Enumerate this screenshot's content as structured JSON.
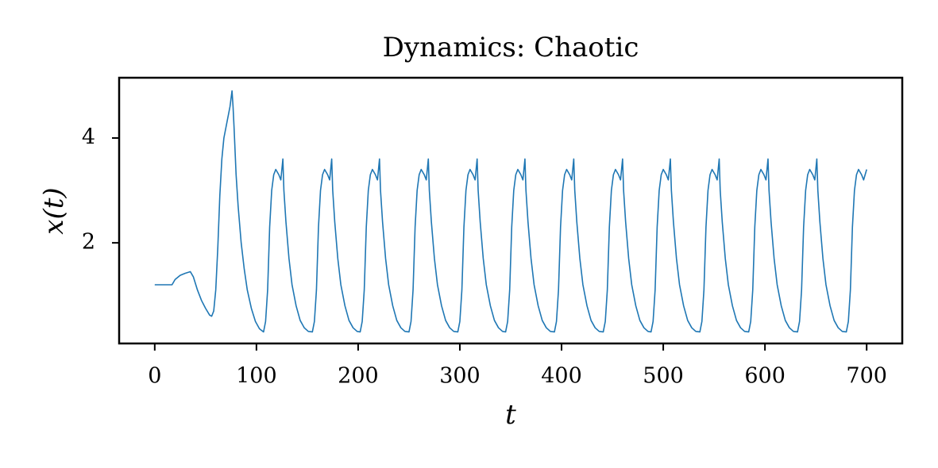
{
  "chart_data": {
    "type": "line",
    "title": "Dynamics: Chaotic",
    "x_label": "t",
    "y_label": "x(t)",
    "xlim": [
      -35,
      735
    ],
    "ylim": [
      0.08,
      5.15
    ],
    "xticks": [
      0,
      100,
      200,
      300,
      400,
      500,
      600,
      700
    ],
    "yticks": [
      2,
      4
    ],
    "grid": false,
    "x": [
      0,
      17,
      20,
      25,
      30,
      35,
      38,
      42,
      46,
      50,
      54,
      56,
      58,
      60,
      62,
      64,
      66,
      68,
      71,
      74,
      76,
      77,
      78,
      80,
      82,
      85,
      88,
      91,
      95,
      99,
      103,
      107,
      109,
      111,
      113,
      115,
      117,
      119,
      122,
      124,
      126,
      127,
      129,
      132,
      135,
      139,
      143,
      147,
      151,
      155,
      157,
      159,
      161,
      163,
      165,
      167,
      170,
      172,
      174,
      175,
      177,
      180,
      183,
      187,
      191,
      195,
      199,
      202,
      204,
      206,
      208,
      210,
      212,
      214,
      217,
      219,
      221,
      222,
      224,
      227,
      230,
      234,
      238,
      242,
      246,
      250,
      252,
      254,
      256,
      258,
      260,
      262,
      265,
      267,
      269,
      270,
      272,
      275,
      278,
      282,
      286,
      290,
      294,
      298,
      300,
      302,
      304,
      306,
      308,
      310,
      313,
      315,
      317,
      318,
      320,
      323,
      326,
      330,
      334,
      338,
      342,
      345,
      347,
      349,
      351,
      353,
      355,
      357,
      360,
      362,
      364,
      365,
      367,
      370,
      373,
      377,
      381,
      385,
      389,
      393,
      395,
      397,
      399,
      401,
      403,
      405,
      408,
      410,
      412,
      413,
      415,
      418,
      421,
      425,
      429,
      433,
      437,
      441,
      443,
      445,
      447,
      449,
      451,
      453,
      456,
      458,
      460,
      461,
      463,
      466,
      469,
      473,
      477,
      481,
      485,
      488,
      490,
      492,
      494,
      496,
      498,
      500,
      503,
      505,
      507,
      508,
      510,
      513,
      516,
      520,
      524,
      528,
      532,
      536,
      538,
      540,
      542,
      544,
      546,
      548,
      551,
      553,
      555,
      556,
      558,
      561,
      564,
      568,
      572,
      576,
      580,
      584,
      586,
      588,
      590,
      592,
      594,
      596,
      599,
      601,
      603,
      604,
      606,
      609,
      612,
      616,
      620,
      624,
      628,
      632,
      634,
      636,
      638,
      640,
      642,
      644,
      647,
      649,
      651,
      652,
      654,
      657,
      660,
      664,
      668,
      672,
      676,
      680,
      682,
      684,
      686,
      688,
      690,
      692,
      695,
      697,
      700
    ],
    "series": [
      {
        "name": "x(t)",
        "color": "#1f77b4",
        "values": [
          1.2,
          1.2,
          1.3,
          1.38,
          1.42,
          1.45,
          1.35,
          1.1,
          0.9,
          0.75,
          0.62,
          0.6,
          0.7,
          1.1,
          1.9,
          2.9,
          3.6,
          4.0,
          4.3,
          4.6,
          4.9,
          4.6,
          4.2,
          3.3,
          2.7,
          2.0,
          1.5,
          1.1,
          0.75,
          0.5,
          0.36,
          0.3,
          0.5,
          1.1,
          2.3,
          3.0,
          3.3,
          3.4,
          3.3,
          3.2,
          3.6,
          3.0,
          2.4,
          1.7,
          1.2,
          0.8,
          0.52,
          0.38,
          0.31,
          0.3,
          0.5,
          1.1,
          2.3,
          3.0,
          3.3,
          3.4,
          3.3,
          3.2,
          3.6,
          3.0,
          2.4,
          1.7,
          1.2,
          0.8,
          0.52,
          0.38,
          0.31,
          0.3,
          0.5,
          1.1,
          2.3,
          3.0,
          3.3,
          3.4,
          3.3,
          3.2,
          3.6,
          3.0,
          2.4,
          1.7,
          1.2,
          0.8,
          0.52,
          0.38,
          0.31,
          0.3,
          0.5,
          1.1,
          2.3,
          3.0,
          3.3,
          3.4,
          3.3,
          3.2,
          3.6,
          3.0,
          2.4,
          1.7,
          1.2,
          0.8,
          0.52,
          0.38,
          0.31,
          0.3,
          0.5,
          1.1,
          2.3,
          3.0,
          3.3,
          3.4,
          3.3,
          3.2,
          3.6,
          3.0,
          2.4,
          1.7,
          1.2,
          0.8,
          0.52,
          0.38,
          0.31,
          0.3,
          0.5,
          1.1,
          2.3,
          3.0,
          3.3,
          3.4,
          3.3,
          3.2,
          3.6,
          3.0,
          2.4,
          1.7,
          1.2,
          0.8,
          0.52,
          0.38,
          0.31,
          0.3,
          0.5,
          1.1,
          2.3,
          3.0,
          3.3,
          3.4,
          3.3,
          3.2,
          3.6,
          3.0,
          2.4,
          1.7,
          1.2,
          0.8,
          0.52,
          0.38,
          0.31,
          0.3,
          0.5,
          1.1,
          2.3,
          3.0,
          3.3,
          3.4,
          3.3,
          3.2,
          3.6,
          3.0,
          2.4,
          1.7,
          1.2,
          0.8,
          0.52,
          0.38,
          0.31,
          0.3,
          0.5,
          1.1,
          2.3,
          3.0,
          3.3,
          3.4,
          3.3,
          3.2,
          3.6,
          3.0,
          2.4,
          1.7,
          1.2,
          0.8,
          0.52,
          0.38,
          0.31,
          0.3,
          0.5,
          1.1,
          2.3,
          3.0,
          3.3,
          3.4,
          3.3,
          3.2,
          3.6,
          3.0,
          2.4,
          1.7,
          1.2,
          0.8,
          0.52,
          0.38,
          0.31,
          0.3,
          0.5,
          1.1,
          2.3,
          3.0,
          3.3,
          3.4,
          3.3,
          3.2,
          3.6,
          3.0,
          2.4,
          1.7,
          1.2,
          0.8,
          0.52,
          0.38,
          0.31,
          0.3,
          0.5,
          1.1,
          2.3,
          3.0,
          3.3,
          3.4,
          3.3,
          3.2,
          3.6,
          3.0,
          2.4,
          1.7,
          1.2,
          0.8,
          0.52,
          0.38,
          0.31,
          0.3,
          0.5,
          1.1,
          2.3,
          3.0,
          3.3,
          3.4,
          3.3,
          3.2,
          3.4
        ]
      }
    ]
  }
}
